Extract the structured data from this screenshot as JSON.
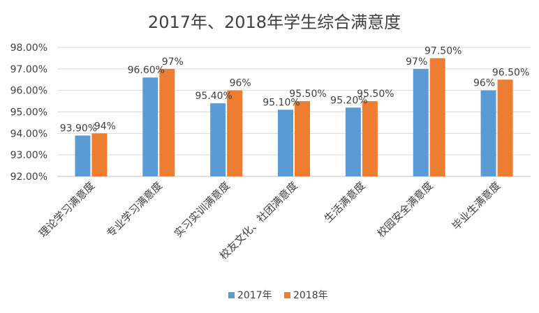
{
  "chart_data": {
    "type": "bar",
    "title": "2017年、2018年学生综合满意度",
    "categories": [
      "理论学习满意度",
      "专业学习满意度",
      "实习实训满意度",
      "校友文化、社团满意度",
      "生活满意度",
      "校园安全满意度",
      "毕业生满意度"
    ],
    "series": [
      {
        "name": "2017年",
        "color": "#5b9bd5",
        "values": [
          93.9,
          96.6,
          95.4,
          95.1,
          95.2,
          97.0,
          96.0
        ],
        "labels": [
          "93.90%",
          "96.60%",
          "95.40%",
          "95.10%",
          "95.20%",
          "97%",
          "96%"
        ]
      },
      {
        "name": "2018年",
        "color": "#ed7d31",
        "values": [
          94.0,
          97.0,
          96.0,
          95.5,
          95.5,
          97.5,
          96.5
        ],
        "labels": [
          "94%",
          "97%",
          "96%",
          "95.50%",
          "95.50%",
          "97.50%",
          "96.50%"
        ]
      }
    ],
    "yticks": [
      92,
      93,
      94,
      95,
      96,
      97,
      98
    ],
    "ytick_labels": [
      "92.00%",
      "93.00%",
      "94.00%",
      "95.00%",
      "96.00%",
      "97.00%",
      "98.00%"
    ],
    "ylim": [
      92,
      98
    ],
    "xlabel": "",
    "ylabel": "",
    "grid": true,
    "legend_position": "bottom"
  }
}
